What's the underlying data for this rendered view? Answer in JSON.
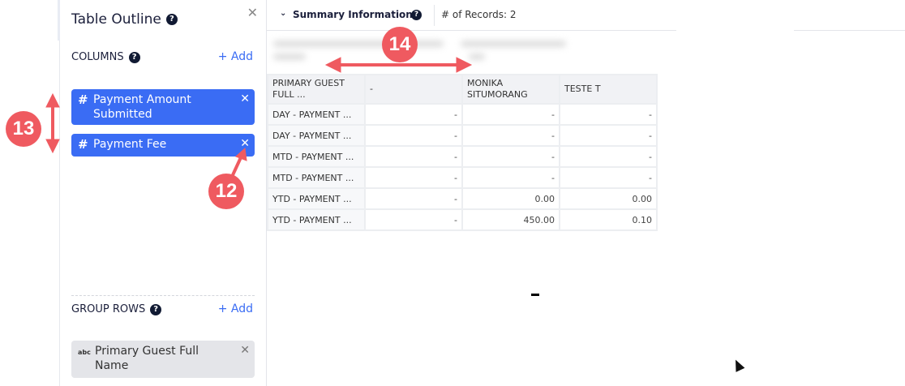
{
  "panel": {
    "title": "Table Outline",
    "close": "✕",
    "columns": {
      "label": "COLUMNS",
      "add": "+ Add",
      "items": [
        {
          "icon": "hash-icon",
          "label": "Payment Amount Submitted"
        },
        {
          "icon": "hash-icon",
          "label": "Payment Fee"
        }
      ]
    },
    "group_rows": {
      "label": "GROUP ROWS",
      "add": "+ Add",
      "items": [
        {
          "icon": "abc",
          "label": "Primary Guest Full Name"
        }
      ]
    }
  },
  "summary": {
    "title": "Summary Information",
    "records": "# of Records: 2"
  },
  "table": {
    "headers": [
      "PRIMARY GUEST FULL ...",
      "-",
      "MONIKA SITUMORANG",
      "TESTE T"
    ],
    "rows": [
      [
        "DAY - PAYMENT ...",
        "-",
        "-",
        "-"
      ],
      [
        "DAY - PAYMENT ...",
        "-",
        "-",
        "-"
      ],
      [
        "MTD - PAYMENT ...",
        "-",
        "-",
        "-"
      ],
      [
        "MTD - PAYMENT ...",
        "-",
        "-",
        "-"
      ],
      [
        "YTD - PAYMENT ...",
        "-",
        "0.00",
        "0.00"
      ],
      [
        "YTD - PAYMENT ...",
        "-",
        "450.00",
        "0.10"
      ]
    ]
  },
  "annotations": [
    "13",
    "12",
    "14"
  ],
  "colors": {
    "accent": "#3a6cf4",
    "annotation": "#ef5a60"
  }
}
